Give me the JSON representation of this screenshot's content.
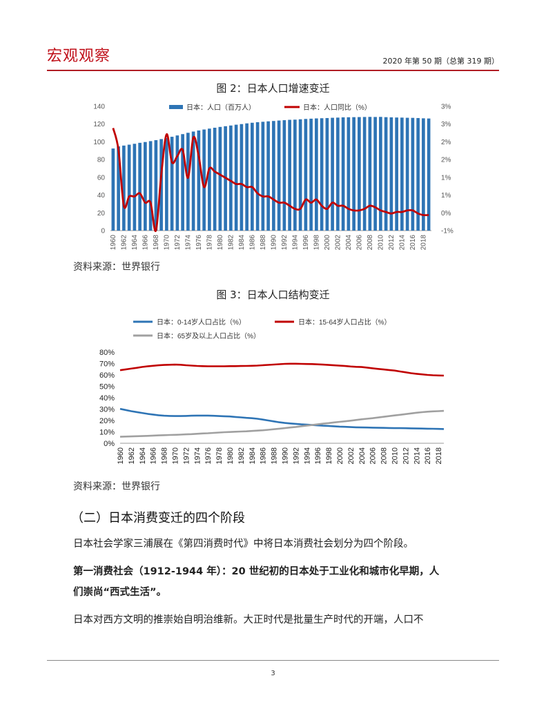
{
  "header": {
    "brand": "宏观观察",
    "issue": "2020 年第 50 期（总第 319 期）"
  },
  "figure2": {
    "title": "图 2：日本人口增速变迁",
    "source": "资料来源：世界银行"
  },
  "figure3": {
    "title": "图 3：日本人口结构变迁",
    "source": "资料来源：世界银行"
  },
  "section": {
    "heading": "（二）日本消费变迁的四个阶段",
    "p1": "日本社会学家三浦展在《第四消费时代》中将日本消费社会划分为四个阶段。",
    "p2_line1": "第一消费社会（1912-1944 年）：20 世纪初的日本处于工业化和城市化早期，人",
    "p2_line2": "们崇尚“西式生活”。",
    "p3": "日本对西方文明的推崇始自明治维新。大正时代是批量生产时代的开端，人口不"
  },
  "footer": {
    "page": "3"
  },
  "chart_data": [
    {
      "type": "bar+line",
      "x_start": 1960,
      "x_end": 2019,
      "x_tick_labels": [
        "1960",
        "1962",
        "1964",
        "1966",
        "1968",
        "1970",
        "1972",
        "1974",
        "1976",
        "1978",
        "1980",
        "1982",
        "1984",
        "1986",
        "1988",
        "1990",
        "1992",
        "1994",
        "1996",
        "1998",
        "2000",
        "2002",
        "2004",
        "2006",
        "2008",
        "2010",
        "2012",
        "2014",
        "2016",
        "2018"
      ],
      "y_left_ticks": [
        "0",
        "20",
        "40",
        "60",
        "80",
        "100",
        "120",
        "140"
      ],
      "y_left_range": [
        0,
        140
      ],
      "y_right_ticks": [
        "-1%",
        "0%",
        "1%",
        "1%",
        "2%",
        "2%",
        "3%",
        "3%"
      ],
      "y_right_range": [
        -1,
        3
      ],
      "legend": [
        "日本：人口（百万人）",
        "日本：人口同比（%）"
      ],
      "colors": {
        "bars": "#2e74b5",
        "line": "#c00000"
      },
      "population_millions": [
        92.5,
        94.9,
        95.8,
        96.8,
        97.8,
        98.9,
        99.8,
        100.8,
        101.9,
        103.1,
        104.3,
        105.7,
        107.2,
        108.7,
        110.2,
        111.6,
        112.8,
        113.9,
        114.9,
        115.9,
        116.8,
        117.6,
        118.4,
        119.3,
        120.0,
        120.8,
        121.5,
        122.1,
        122.6,
        123.1,
        123.5,
        124.0,
        124.4,
        124.8,
        125.0,
        125.4,
        125.8,
        126.1,
        126.4,
        126.6,
        126.8,
        127.1,
        127.3,
        127.6,
        127.7,
        127.8,
        127.9,
        128.0,
        128.1,
        128.0,
        128.1,
        127.8,
        127.6,
        127.4,
        127.3,
        127.1,
        127.0,
        126.8,
        126.5,
        126.3
      ],
      "growth_pct": [
        2.3,
        1.6,
        -0.2,
        0.1,
        0.1,
        0.2,
        -0.1,
        -0.1,
        -1.0,
        0.8,
        2.1,
        1.2,
        1.4,
        1.6,
        0.7,
        2.0,
        1.4,
        0.4,
        1.0,
        0.9,
        0.8,
        0.7,
        0.6,
        0.5,
        0.5,
        0.4,
        0.4,
        0.2,
        0.1,
        0.1,
        0.0,
        -0.1,
        -0.1,
        -0.2,
        -0.3,
        -0.3,
        0.0,
        -0.1,
        0.0,
        -0.2,
        -0.3,
        -0.1,
        -0.2,
        -0.2,
        -0.3,
        -0.35,
        -0.35,
        -0.3,
        -0.2,
        -0.25,
        -0.35,
        -0.4,
        -0.45,
        -0.4,
        -0.4,
        -0.35,
        -0.35,
        -0.45,
        -0.5,
        -0.5
      ]
    },
    {
      "type": "line",
      "x_start": 1960,
      "x_end": 2019,
      "x_tick_labels": [
        "1960",
        "1962",
        "1964",
        "1966",
        "1968",
        "1970",
        "1972",
        "1974",
        "1976",
        "1978",
        "1980",
        "1982",
        "1984",
        "1986",
        "1988",
        "1990",
        "1992",
        "1994",
        "1996",
        "1998",
        "2000",
        "2002",
        "2004",
        "2006",
        "2008",
        "2010",
        "2012",
        "2014",
        "2016",
        "2018"
      ],
      "y_ticks": [
        "0%",
        "10%",
        "20%",
        "30%",
        "40%",
        "50%",
        "60%",
        "70%",
        "80%"
      ],
      "y_range": [
        0,
        80
      ],
      "series": [
        {
          "name": "日本：0-14岁人口占比（%）",
          "color": "#2e74b5",
          "values": [
            30.2,
            29.2,
            28.2,
            27.4,
            26.6,
            25.8,
            25.2,
            24.6,
            24.2,
            24.0,
            23.9,
            23.9,
            24.0,
            24.2,
            24.3,
            24.3,
            24.3,
            24.1,
            23.9,
            23.7,
            23.5,
            23.1,
            22.7,
            22.3,
            22.0,
            21.5,
            20.8,
            20.0,
            19.2,
            18.4,
            17.8,
            17.4,
            17.0,
            16.6,
            16.3,
            16.0,
            15.7,
            15.4,
            15.2,
            14.9,
            14.6,
            14.4,
            14.2,
            14.0,
            13.9,
            13.8,
            13.7,
            13.6,
            13.5,
            13.4,
            13.3,
            13.3,
            13.2,
            13.1,
            13.0,
            12.9,
            12.8,
            12.7,
            12.6,
            12.5
          ]
        },
        {
          "name": "日本：15-64岁人口占比（%）",
          "color": "#c00000",
          "values": [
            64.1,
            64.8,
            65.5,
            66.2,
            67.0,
            67.5,
            68.0,
            68.4,
            68.7,
            68.9,
            69.0,
            68.9,
            68.5,
            68.2,
            67.9,
            67.7,
            67.6,
            67.6,
            67.6,
            67.6,
            67.7,
            67.7,
            67.8,
            67.9,
            68.0,
            68.2,
            68.5,
            68.8,
            69.1,
            69.4,
            69.7,
            69.8,
            69.8,
            69.7,
            69.6,
            69.5,
            69.3,
            69.0,
            68.7,
            68.4,
            68.1,
            67.8,
            67.4,
            67.1,
            66.9,
            66.4,
            65.8,
            65.3,
            64.8,
            64.3,
            63.8,
            63.0,
            62.3,
            61.5,
            61.0,
            60.5,
            60.0,
            59.7,
            59.5,
            59.4
          ]
        },
        {
          "name": "日本：65岁及以上人口占比（%）",
          "color": "#a0a0a0",
          "values": [
            5.7,
            5.9,
            6.0,
            6.2,
            6.3,
            6.5,
            6.7,
            6.9,
            7.1,
            7.3,
            7.4,
            7.6,
            7.8,
            8.0,
            8.3,
            8.6,
            8.8,
            9.1,
            9.4,
            9.7,
            9.9,
            10.1,
            10.3,
            10.5,
            10.8,
            11.1,
            11.4,
            11.8,
            12.3,
            12.8,
            13.3,
            13.8,
            14.3,
            14.9,
            15.5,
            16.0,
            16.6,
            17.2,
            17.7,
            18.3,
            18.8,
            19.3,
            19.8,
            20.4,
            21.0,
            21.5,
            22.0,
            22.6,
            23.2,
            23.8,
            24.4,
            25.0,
            25.6,
            26.2,
            26.8,
            27.3,
            27.7,
            28.0,
            28.2,
            28.4
          ]
        }
      ]
    }
  ]
}
